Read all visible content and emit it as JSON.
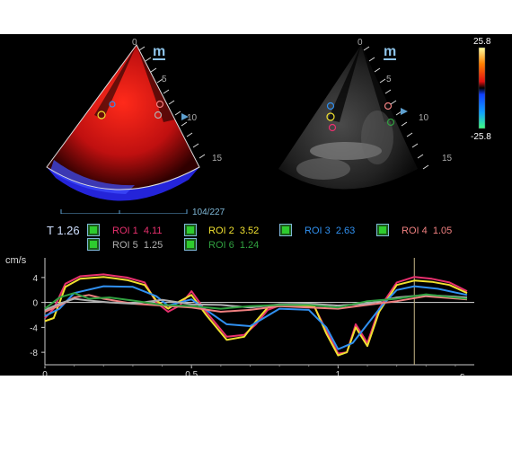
{
  "views": {
    "left_logo": "m",
    "right_logo": "m",
    "left_depth_ticks": [
      "0",
      "5",
      "10",
      "15"
    ],
    "right_depth_ticks": [
      "0",
      "5",
      "10",
      "15"
    ]
  },
  "colorbar": {
    "max": "25.8",
    "min": "-25.8"
  },
  "timeline": {
    "frame": "104/227"
  },
  "readout": {
    "time_label": "T 1.26",
    "rois": [
      {
        "name": "ROI 1",
        "value": "4.11",
        "color": "#e8306e"
      },
      {
        "name": "ROI 2",
        "value": "3.52",
        "color": "#f0e030"
      },
      {
        "name": "ROI 3",
        "value": "2.63",
        "color": "#3090f0"
      },
      {
        "name": "ROI 4",
        "value": "1.05",
        "color": "#f08080"
      },
      {
        "name": "ROI 5",
        "value": "1.25",
        "color": "#b0b0b0"
      },
      {
        "name": "ROI 6",
        "value": "1.24",
        "color": "#30a040"
      }
    ]
  },
  "chart_data": {
    "type": "line",
    "ylabel": "cm/s",
    "xlabel": "s",
    "xlim": [
      0,
      1.44
    ],
    "ylim": [
      -10,
      6
    ],
    "yticks": [
      "4",
      "0",
      "-4",
      "-8"
    ],
    "xticks": [
      "0",
      "0.5",
      "1"
    ],
    "cursor_x": 1.26,
    "series": [
      {
        "color": "#e8306e",
        "x": [
          0,
          0.03,
          0.07,
          0.12,
          0.2,
          0.28,
          0.34,
          0.38,
          0.42,
          0.46,
          0.5,
          0.55,
          0.62,
          0.68,
          0.72,
          0.76,
          0.8,
          0.86,
          0.92,
          0.96,
          1.0,
          1.03,
          1.06,
          1.1,
          1.14,
          1.2,
          1.26,
          1.32,
          1.38,
          1.44
        ],
        "y": [
          -2.5,
          -1,
          3,
          4.2,
          4.5,
          4,
          3.2,
          0,
          -1.5,
          -0.5,
          1.8,
          -1.5,
          -5.5,
          -5.2,
          -3.5,
          -1.2,
          -0.5,
          -0.6,
          -0.8,
          -4.5,
          -8.2,
          -8,
          -3.5,
          -6.5,
          -1,
          3.2,
          4.1,
          3.8,
          3.2,
          1.8
        ]
      },
      {
        "color": "#f0e030",
        "x": [
          0,
          0.03,
          0.07,
          0.12,
          0.2,
          0.28,
          0.34,
          0.38,
          0.42,
          0.46,
          0.5,
          0.55,
          0.62,
          0.68,
          0.72,
          0.76,
          0.8,
          0.86,
          0.92,
          0.96,
          1.0,
          1.03,
          1.06,
          1.1,
          1.14,
          1.2,
          1.26,
          1.32,
          1.38,
          1.44
        ],
        "y": [
          -3,
          -2.5,
          2.5,
          3.8,
          4.1,
          3.6,
          2.8,
          0.3,
          -1,
          0.2,
          1.2,
          -2,
          -6,
          -5.5,
          -3,
          -0.8,
          -0.4,
          -0.5,
          -0.7,
          -5,
          -8.5,
          -8,
          -4,
          -7,
          -1.5,
          2.8,
          3.5,
          3.3,
          2.8,
          1.5
        ]
      },
      {
        "color": "#3090f0",
        "x": [
          0,
          0.05,
          0.1,
          0.2,
          0.3,
          0.38,
          0.42,
          0.5,
          0.55,
          0.62,
          0.7,
          0.8,
          0.9,
          0.96,
          1.0,
          1.05,
          1.1,
          1.15,
          1.2,
          1.26,
          1.34,
          1.44
        ],
        "y": [
          -2.2,
          -1,
          1.5,
          2.6,
          2.5,
          1,
          -0.5,
          0.5,
          -1.2,
          -3.5,
          -3.8,
          -1,
          -1.2,
          -4,
          -7.5,
          -6.5,
          -3.5,
          -0.5,
          2,
          2.6,
          2.2,
          1.2
        ]
      },
      {
        "color": "#f08080",
        "x": [
          0,
          0.05,
          0.1,
          0.15,
          0.2,
          0.3,
          0.4,
          0.5,
          0.6,
          0.7,
          0.8,
          0.9,
          1.0,
          1.1,
          1.2,
          1.3,
          1.44
        ],
        "y": [
          -1.5,
          -0.5,
          0.8,
          1.2,
          0.6,
          -0.2,
          -0.5,
          -0.8,
          -1.5,
          -1.2,
          -0.6,
          -0.8,
          -1,
          -0.4,
          0.2,
          1,
          0.5
        ]
      },
      {
        "color": "#b0b0b0",
        "x": [
          0,
          0.05,
          0.1,
          0.15,
          0.22,
          0.3,
          0.4,
          0.5,
          0.6,
          0.7,
          0.8,
          0.9,
          1.0,
          1.1,
          1.2,
          1.3,
          1.44
        ],
        "y": [
          -1.2,
          -0.2,
          0.6,
          0.3,
          0,
          -0.2,
          0.4,
          -0.3,
          -0.4,
          -0.8,
          -0.3,
          -0.2,
          -0.5,
          -0.2,
          0.8,
          1.2,
          0.8
        ]
      },
      {
        "color": "#30a040",
        "x": [
          0,
          0.05,
          0.1,
          0.15,
          0.22,
          0.3,
          0.4,
          0.5,
          0.6,
          0.7,
          0.8,
          0.9,
          1.0,
          1.1,
          1.2,
          1.3,
          1.44
        ],
        "y": [
          -1,
          0.8,
          1.5,
          0.6,
          0.8,
          0.3,
          -0.4,
          -0.6,
          -1,
          -0.6,
          -0.4,
          -0.4,
          -0.8,
          0.2,
          0.6,
          1.3,
          0.6
        ]
      }
    ]
  }
}
